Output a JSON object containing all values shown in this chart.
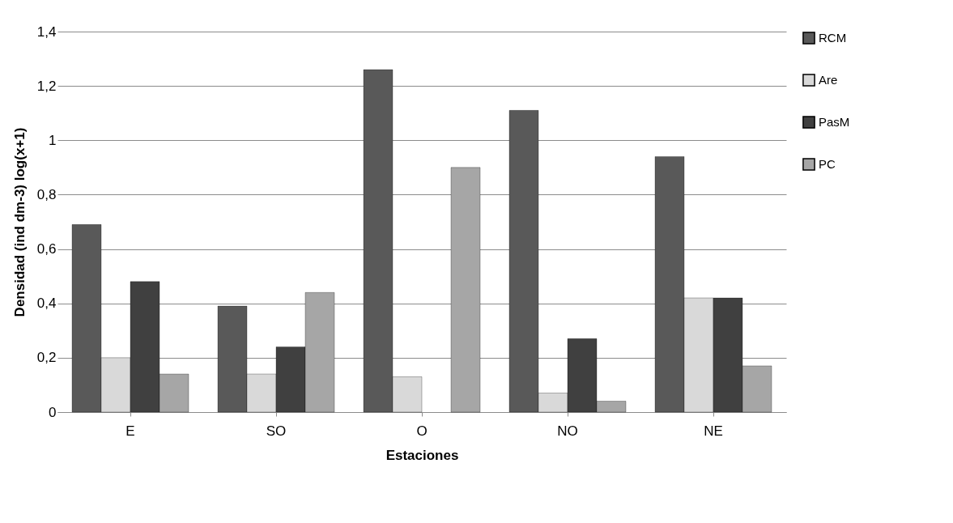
{
  "chart_data": {
    "type": "bar",
    "xlabel": "Estaciones",
    "ylabel": "Densidad (ind dm-3) log(x+1)",
    "categories": [
      "E",
      "SO",
      "O",
      "NO",
      "NE"
    ],
    "series": [
      {
        "name": "RCM",
        "color": "#595959",
        "values": [
          0.69,
          0.39,
          1.26,
          1.11,
          0.94
        ]
      },
      {
        "name": "Are",
        "color": "#d9d9d9",
        "values": [
          0.2,
          0.14,
          0.13,
          0.07,
          0.42
        ]
      },
      {
        "name": "PasM",
        "color": "#404040",
        "values": [
          0.48,
          0.24,
          null,
          0.27,
          0.42
        ]
      },
      {
        "name": "PC",
        "color": "#a6a6a6",
        "values": [
          0.14,
          0.44,
          0.9,
          0.04,
          0.17
        ]
      }
    ],
    "ylim": [
      0,
      1.4
    ],
    "yticks": [
      0,
      {
        "value": 0.2,
        "label": "0,2"
      },
      {
        "value": 0.4,
        "label": "0,4"
      },
      {
        "value": 0.6,
        "label": "0,6"
      },
      {
        "value": 0.8,
        "label": "0,8"
      },
      1,
      {
        "value": 1.2,
        "label": "1,2"
      },
      {
        "value": 1.4,
        "label": "1,4"
      }
    ],
    "grid": "y",
    "legend": "right"
  }
}
